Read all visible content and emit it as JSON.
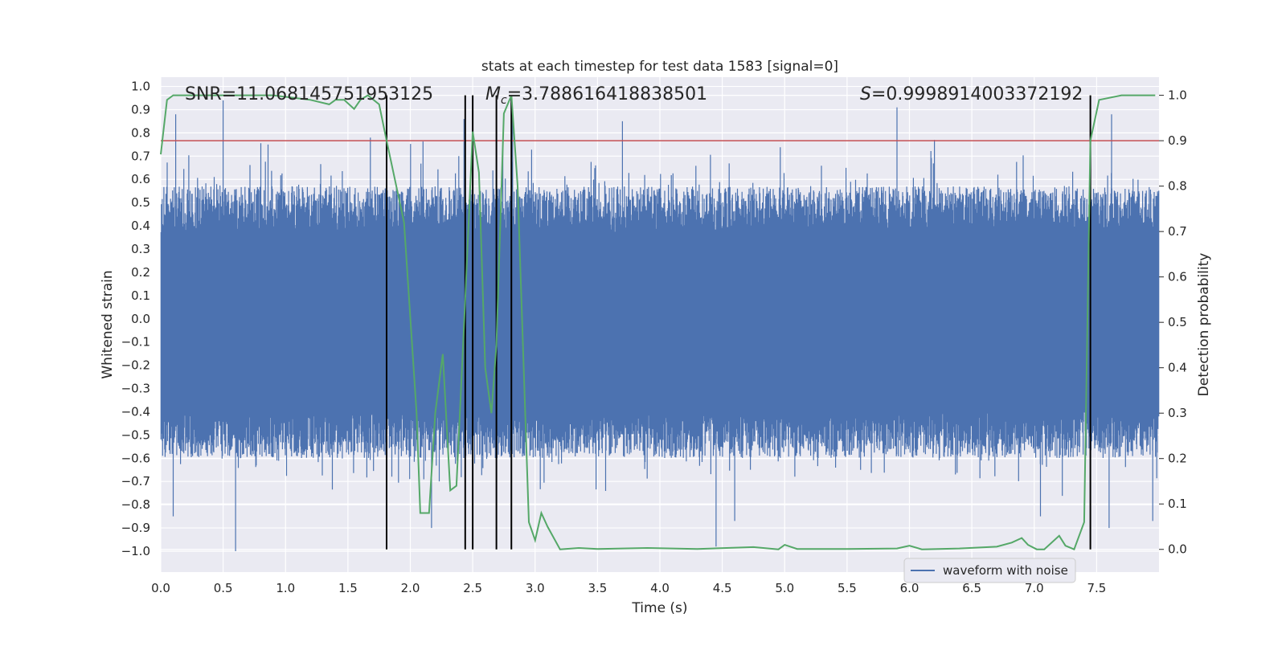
{
  "chart_data": {
    "type": "line",
    "title": "stats at each timestep for test data 1583 [signal=0]",
    "xlabel": "Time (s)",
    "ylabel_left": "Whitened strain",
    "ylabel_right": "Detection probability",
    "xlim": [
      0.0,
      8.0
    ],
    "ylim_left": [
      -1.09,
      1.04
    ],
    "ylim_right": [
      -0.05,
      1.04
    ],
    "x_ticks": [
      "0.0",
      "0.5",
      "1.0",
      "1.5",
      "2.0",
      "2.5",
      "3.0",
      "3.5",
      "4.0",
      "4.5",
      "5.0",
      "5.5",
      "6.0",
      "6.5",
      "7.0",
      "7.5"
    ],
    "y_left_ticks": [
      "1.0",
      "0.9",
      "0.8",
      "0.7",
      "0.6",
      "0.5",
      "0.4",
      "0.3",
      "0.2",
      "0.1",
      "0.0",
      "−0.1",
      "−0.2",
      "−0.3",
      "−0.4",
      "−0.5",
      "−0.6",
      "−0.7",
      "−0.8",
      "−0.9",
      "−1.0"
    ],
    "y_right_ticks": [
      "1.0",
      "0.9",
      "0.8",
      "0.7",
      "0.6",
      "0.5",
      "0.4",
      "0.3",
      "0.2",
      "0.1",
      "0.0"
    ],
    "grid": true,
    "annotations": {
      "snr": "SNR=11.068145751953125",
      "mc_symbol": "M",
      "mc_subscript": "c",
      "mc_value": "=3.788616418838501",
      "s_symbol": "S",
      "s_value": "=0.9998914003372192"
    },
    "threshold": 0.9,
    "threshold_color": "#c44e52",
    "vertical_lines_x": [
      1.81,
      2.44,
      2.5,
      2.69,
      2.81,
      7.45
    ],
    "vertical_line_color": "#000000",
    "waveform": {
      "name": "waveform with noise",
      "color": "#4c72b0",
      "duration_s": 8.0,
      "core_range": [
        -0.4,
        0.37
      ],
      "peaks": [
        {
          "x": 0.12,
          "y": 0.88
        },
        {
          "x": 0.5,
          "y": 0.94
        },
        {
          "x": 0.86,
          "y": 0.75
        },
        {
          "x": 1.68,
          "y": 0.78
        },
        {
          "x": 2.43,
          "y": 0.86
        },
        {
          "x": 2.82,
          "y": 0.88
        },
        {
          "x": 3.7,
          "y": 0.85
        },
        {
          "x": 5.9,
          "y": 0.91
        },
        {
          "x": 6.2,
          "y": 0.77
        },
        {
          "x": 7.62,
          "y": 0.88
        },
        {
          "x": 0.6,
          "y": -1.0
        },
        {
          "x": 0.1,
          "y": -0.85
        },
        {
          "x": 2.17,
          "y": -0.9
        },
        {
          "x": 4.45,
          "y": -0.98
        },
        {
          "x": 4.6,
          "y": -0.87
        },
        {
          "x": 7.05,
          "y": -0.85
        },
        {
          "x": 7.6,
          "y": -0.9
        },
        {
          "x": 7.95,
          "y": -0.87
        }
      ]
    },
    "detection_probability": {
      "color": "#55a868",
      "x": [
        0.0,
        0.05,
        0.1,
        0.3,
        0.6,
        0.9,
        1.2,
        1.35,
        1.4,
        1.47,
        1.55,
        1.6,
        1.66,
        1.75,
        1.81,
        1.95,
        2.05,
        2.08,
        2.15,
        2.2,
        2.26,
        2.32,
        2.37,
        2.44,
        2.5,
        2.55,
        2.6,
        2.65,
        2.69,
        2.75,
        2.81,
        2.86,
        2.95,
        3.0,
        3.05,
        3.1,
        3.2,
        3.35,
        3.5,
        3.9,
        4.3,
        4.75,
        4.95,
        5.0,
        5.1,
        5.5,
        5.9,
        6.0,
        6.1,
        6.4,
        6.7,
        6.82,
        6.9,
        6.95,
        7.02,
        7.08,
        7.2,
        7.25,
        7.32,
        7.4,
        7.45,
        7.52,
        7.7,
        7.97
      ],
      "y": [
        0.87,
        0.99,
        1.0,
        1.0,
        1.0,
        1.0,
        0.99,
        0.98,
        0.99,
        0.99,
        0.97,
        0.99,
        1.0,
        0.98,
        0.9,
        0.72,
        0.3,
        0.08,
        0.08,
        0.3,
        0.43,
        0.13,
        0.14,
        0.55,
        0.92,
        0.83,
        0.4,
        0.3,
        0.45,
        0.96,
        1.0,
        0.8,
        0.06,
        0.02,
        0.08,
        0.05,
        0.0,
        0.003,
        0.001,
        0.003,
        0.001,
        0.005,
        0.0,
        0.01,
        0.001,
        0.001,
        0.002,
        0.008,
        0.0,
        0.002,
        0.006,
        0.015,
        0.025,
        0.01,
        0.0,
        0.0,
        0.03,
        0.008,
        0.0,
        0.06,
        0.9,
        0.99,
        1.0,
        1.0
      ]
    },
    "legend": {
      "entries": [
        "waveform with noise"
      ],
      "placement": "lower-right"
    }
  }
}
